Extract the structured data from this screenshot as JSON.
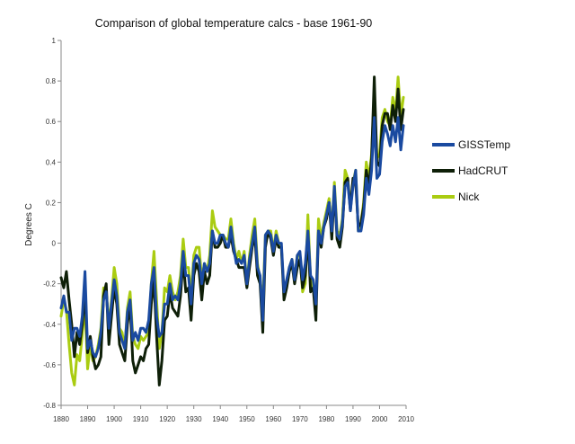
{
  "chart_data": {
    "type": "line",
    "title": "Comparison of global temperature calcs - base 1961-90",
    "xlabel": "",
    "ylabel": "Degrees C",
    "xlim": [
      1880,
      2010
    ],
    "ylim": [
      -0.8,
      1.0
    ],
    "x_ticks": [
      "1880",
      "1890",
      "1900",
      "1910",
      "1920",
      "1930",
      "1940",
      "1950",
      "1960",
      "1970",
      "1980",
      "1990",
      "2000",
      "2010"
    ],
    "y_ticks": [
      "-0.8",
      "-0.6",
      "-0.4",
      "-0.2",
      "0",
      "0.2",
      "0.4",
      "0.6",
      "0.8",
      "1"
    ],
    "grid": false,
    "legend_position": "right",
    "x": [
      1880,
      1881,
      1882,
      1883,
      1884,
      1885,
      1886,
      1887,
      1888,
      1889,
      1890,
      1891,
      1892,
      1893,
      1894,
      1895,
      1896,
      1897,
      1898,
      1899,
      1900,
      1901,
      1902,
      1903,
      1904,
      1905,
      1906,
      1907,
      1908,
      1909,
      1910,
      1911,
      1912,
      1913,
      1914,
      1915,
      1916,
      1917,
      1918,
      1919,
      1920,
      1921,
      1922,
      1923,
      1924,
      1925,
      1926,
      1927,
      1928,
      1929,
      1930,
      1931,
      1932,
      1933,
      1934,
      1935,
      1936,
      1937,
      1938,
      1939,
      1940,
      1941,
      1942,
      1943,
      1944,
      1945,
      1946,
      1947,
      1948,
      1949,
      1950,
      1951,
      1952,
      1953,
      1954,
      1955,
      1956,
      1957,
      1958,
      1959,
      1960,
      1961,
      1962,
      1963,
      1964,
      1965,
      1966,
      1967,
      1968,
      1969,
      1970,
      1971,
      1972,
      1973,
      1974,
      1975,
      1976,
      1977,
      1978,
      1979,
      1980,
      1981,
      1982,
      1983,
      1984,
      1985,
      1986,
      1987,
      1988,
      1989,
      1990,
      1991,
      1992,
      1993,
      1994,
      1995,
      1996,
      1997,
      1998,
      1999,
      2000,
      2001,
      2002,
      2003,
      2004,
      2005,
      2006,
      2007,
      2008,
      2009
    ],
    "series": [
      {
        "name": "Nick",
        "color": "#aacc11",
        "width": 3,
        "values": [
          -0.36,
          -0.28,
          -0.33,
          -0.5,
          -0.64,
          -0.7,
          -0.55,
          -0.58,
          -0.45,
          -0.3,
          -0.62,
          -0.5,
          -0.58,
          -0.56,
          -0.5,
          -0.42,
          -0.22,
          -0.24,
          -0.4,
          -0.28,
          -0.12,
          -0.2,
          -0.42,
          -0.44,
          -0.52,
          -0.32,
          -0.24,
          -0.46,
          -0.5,
          -0.52,
          -0.46,
          -0.48,
          -0.46,
          -0.44,
          -0.2,
          -0.04,
          -0.28,
          -0.52,
          -0.44,
          -0.22,
          -0.24,
          -0.16,
          -0.24,
          -0.28,
          -0.24,
          -0.16,
          0.02,
          -0.12,
          -0.12,
          -0.26,
          -0.06,
          -0.02,
          -0.02,
          -0.18,
          -0.1,
          -0.14,
          -0.06,
          0.16,
          0.08,
          0.06,
          0.04,
          0.04,
          0.02,
          0.02,
          0.12,
          0.0,
          -0.08,
          -0.04,
          -0.1,
          -0.04,
          -0.2,
          -0.06,
          0.04,
          0.12,
          -0.1,
          -0.18,
          -0.3,
          0.04,
          0.06,
          0.06,
          -0.04,
          0.06,
          0.0,
          -0.02,
          -0.24,
          -0.2,
          -0.12,
          -0.08,
          -0.18,
          -0.06,
          -0.06,
          -0.24,
          -0.2,
          0.14,
          -0.18,
          -0.22,
          -0.32,
          0.12,
          0.02,
          0.1,
          0.16,
          0.22,
          0.06,
          0.3,
          0.06,
          0.04,
          0.12,
          0.36,
          0.32,
          0.18,
          0.3,
          0.36,
          0.06,
          0.1,
          0.2,
          0.4,
          0.32,
          0.44,
          0.74,
          0.42,
          0.44,
          0.62,
          0.66,
          0.6,
          0.58,
          0.72,
          0.64,
          0.82,
          0.62,
          0.72
        ]
      },
      {
        "name": "HadCRUT",
        "color": "#0e1f08",
        "width": 3,
        "values": [
          -0.17,
          -0.22,
          -0.14,
          -0.28,
          -0.4,
          -0.56,
          -0.44,
          -0.5,
          -0.4,
          -0.24,
          -0.54,
          -0.46,
          -0.56,
          -0.62,
          -0.6,
          -0.56,
          -0.26,
          -0.2,
          -0.5,
          -0.36,
          -0.22,
          -0.3,
          -0.5,
          -0.54,
          -0.58,
          -0.4,
          -0.3,
          -0.58,
          -0.64,
          -0.6,
          -0.56,
          -0.58,
          -0.52,
          -0.5,
          -0.3,
          -0.18,
          -0.46,
          -0.7,
          -0.58,
          -0.38,
          -0.36,
          -0.24,
          -0.32,
          -0.34,
          -0.36,
          -0.26,
          -0.08,
          -0.24,
          -0.22,
          -0.38,
          -0.16,
          -0.1,
          -0.14,
          -0.28,
          -0.14,
          -0.2,
          -0.16,
          0.06,
          -0.02,
          -0.02,
          0.0,
          0.04,
          -0.02,
          -0.02,
          0.04,
          -0.04,
          -0.08,
          -0.12,
          -0.12,
          -0.12,
          -0.22,
          -0.12,
          -0.02,
          0.04,
          -0.16,
          -0.2,
          -0.44,
          -0.02,
          0.06,
          0.02,
          -0.06,
          0.02,
          -0.02,
          -0.02,
          -0.28,
          -0.22,
          -0.14,
          -0.1,
          -0.2,
          -0.12,
          -0.08,
          -0.22,
          -0.16,
          0.04,
          -0.24,
          -0.22,
          -0.38,
          0.06,
          -0.02,
          0.08,
          0.12,
          0.2,
          0.02,
          0.26,
          0.02,
          -0.02,
          0.08,
          0.3,
          0.32,
          0.16,
          0.32,
          0.3,
          0.08,
          0.1,
          0.18,
          0.36,
          0.28,
          0.42,
          0.82,
          0.4,
          0.38,
          0.58,
          0.64,
          0.64,
          0.56,
          0.68,
          0.6,
          0.76,
          0.56,
          0.66
        ]
      },
      {
        "name": "GISSTemp",
        "color": "#1a4aa0",
        "width": 3,
        "values": [
          -0.32,
          -0.26,
          -0.34,
          -0.34,
          -0.48,
          -0.42,
          -0.42,
          -0.46,
          -0.36,
          -0.14,
          -0.52,
          -0.48,
          -0.54,
          -0.56,
          -0.52,
          -0.44,
          -0.28,
          -0.24,
          -0.42,
          -0.3,
          -0.18,
          -0.26,
          -0.44,
          -0.48,
          -0.52,
          -0.34,
          -0.28,
          -0.48,
          -0.44,
          -0.48,
          -0.42,
          -0.42,
          -0.44,
          -0.38,
          -0.2,
          -0.12,
          -0.36,
          -0.46,
          -0.44,
          -0.3,
          -0.3,
          -0.2,
          -0.28,
          -0.26,
          -0.28,
          -0.2,
          -0.04,
          -0.16,
          -0.16,
          -0.3,
          -0.1,
          -0.06,
          -0.08,
          -0.2,
          -0.1,
          -0.14,
          -0.1,
          0.06,
          0.0,
          0.0,
          0.04,
          0.04,
          0.0,
          -0.02,
          0.08,
          -0.02,
          -0.1,
          -0.08,
          -0.1,
          -0.06,
          -0.2,
          -0.08,
          0.0,
          0.08,
          -0.12,
          -0.16,
          -0.38,
          0.04,
          0.06,
          0.04,
          -0.04,
          0.04,
          0.0,
          0.0,
          -0.24,
          -0.18,
          -0.12,
          -0.08,
          -0.18,
          -0.06,
          -0.04,
          -0.18,
          -0.1,
          0.06,
          -0.16,
          -0.18,
          -0.3,
          0.06,
          0.0,
          0.08,
          0.14,
          0.2,
          0.06,
          0.28,
          0.04,
          0.02,
          0.1,
          0.28,
          0.3,
          0.16,
          0.28,
          0.36,
          0.06,
          0.06,
          0.14,
          0.32,
          0.24,
          0.36,
          0.62,
          0.32,
          0.34,
          0.5,
          0.58,
          0.54,
          0.48,
          0.58,
          0.5,
          0.62,
          0.46,
          0.58
        ]
      }
    ],
    "legend_order": [
      "GISSTemp",
      "HadCRUT",
      "Nick"
    ]
  }
}
